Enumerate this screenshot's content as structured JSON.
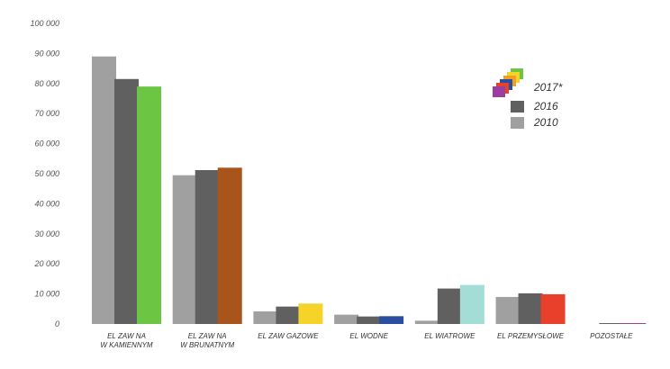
{
  "chart_data": {
    "type": "bar",
    "categories": [
      [
        "EL ZAW NA",
        "W KAMIENNYM"
      ],
      [
        "EL ZAW NA",
        "W BRUNATNYM"
      ],
      [
        "EL ZAW GAZOWE"
      ],
      [
        "EL WODNE"
      ],
      [
        "EL WIATROWE"
      ],
      [
        "EL PRZEMYSŁOWE"
      ],
      [
        "POZOSTAŁE"
      ]
    ],
    "series": [
      {
        "name": "2010",
        "values": [
          89000,
          49500,
          4200,
          3100,
          1100,
          9000,
          0
        ],
        "color": "#a0a0a0"
      },
      {
        "name": "2016",
        "values": [
          81500,
          51200,
          5800,
          2500,
          11800,
          10200,
          150
        ],
        "color": "#606060"
      },
      {
        "name": "2017*",
        "values": [
          79000,
          52000,
          6800,
          2600,
          13000,
          9900,
          300
        ],
        "colors": [
          "#6cc644",
          "#a8551b",
          "#f5d328",
          "#2a4ea0",
          "#a4ddd6",
          "#e8402a",
          "#9b3ea0"
        ]
      }
    ],
    "ylim": [
      0,
      100000
    ],
    "yticks": [
      0,
      10000,
      20000,
      30000,
      40000,
      50000,
      60000,
      70000,
      80000,
      90000,
      100000
    ],
    "ytick_labels": [
      "0",
      "10 000",
      "20 000",
      "30 000",
      "40 000",
      "50 000",
      "60 000",
      "70 000",
      "80 000",
      "90 000",
      "100 000"
    ],
    "grid": false,
    "legend_position": "top-right",
    "legend_labels": [
      "2017*",
      "2016",
      "2010"
    ],
    "legend_multicolor_swatch": [
      "#6cc644",
      "#f5d328",
      "#f0a020",
      "#2a4ea0",
      "#e8402a",
      "#9b3ea0"
    ]
  }
}
